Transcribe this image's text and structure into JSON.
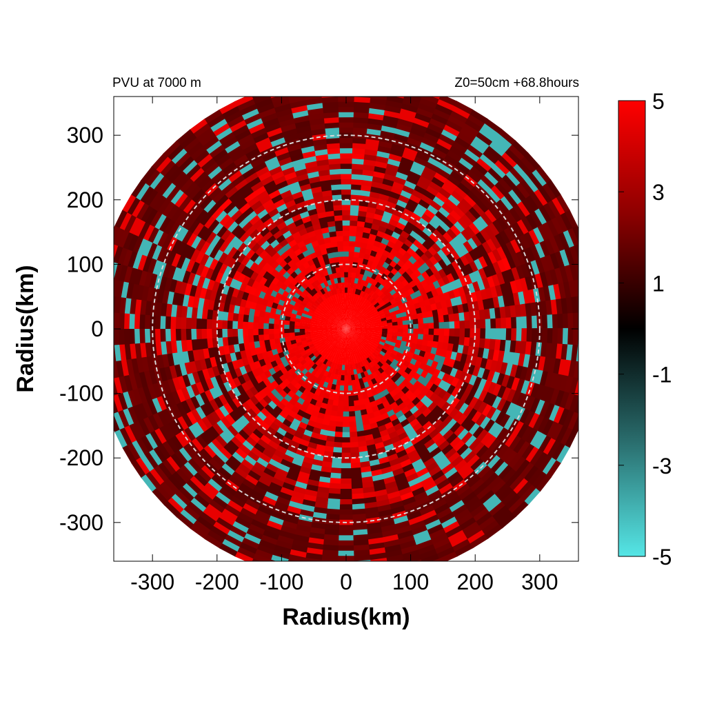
{
  "chart_data": {
    "type": "heatmap",
    "title_left": "PVU at  7000 m",
    "title_right": "Z0=50cm  +68.8hours",
    "xlabel": "Radius(km)",
    "ylabel": "Radius(km)",
    "xlim": [
      -360,
      360
    ],
    "ylim": [
      -360,
      360
    ],
    "x_ticks": [
      -300,
      -200,
      -100,
      0,
      100,
      200,
      300
    ],
    "y_ticks": [
      300,
      200,
      100,
      0,
      -100,
      -200,
      -300
    ],
    "x_tick_labels": [
      "-300",
      "-200",
      "-100",
      "0",
      "100",
      "200",
      "300"
    ],
    "y_tick_labels": [
      "300",
      "200",
      "100",
      "0",
      "-100",
      "-200",
      "-300"
    ],
    "domain_radius_km": 390,
    "reference_circles_km": [
      100,
      200,
      300
    ],
    "color_scale": {
      "min": -5,
      "max": 5,
      "tick_values": [
        5,
        3,
        1,
        -1,
        -3,
        -5
      ],
      "tick_labels": [
        "5",
        "3",
        "1",
        "-1",
        "-3",
        "-5"
      ],
      "colors": {
        "high": "#ff0000",
        "mid_high": "#8c0000",
        "zero": "#000000",
        "mid_low": "#2a6e6e",
        "low": "#55e6e6"
      }
    },
    "field_summary": {
      "eye_radius_km": 55,
      "eye_value": 5,
      "eyewall_radius_km": [
        55,
        160
      ],
      "eyewall_value": 4.5,
      "outer_band_value": 1.5
    }
  }
}
